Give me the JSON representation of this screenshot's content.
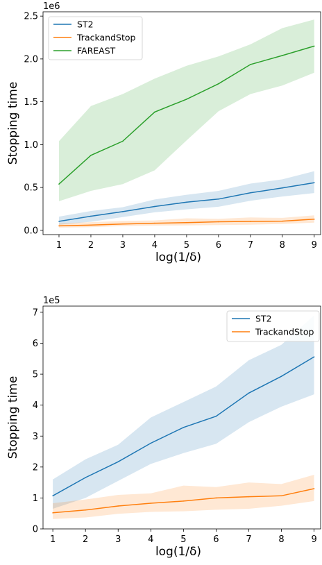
{
  "chart_data": [
    {
      "type": "line",
      "title": "",
      "xlabel": "log(1/δ)",
      "ylabel": "Stopping time",
      "y_offset_label": "1e6",
      "x": [
        1,
        2,
        3,
        4,
        5,
        6,
        7,
        8,
        9
      ],
      "xlim": [
        0.5,
        9.2
      ],
      "ylim": [
        -0.05,
        2.55
      ],
      "xticks": [
        "1",
        "2",
        "3",
        "4",
        "5",
        "6",
        "7",
        "8",
        "9"
      ],
      "yticks": [
        0.0,
        0.5,
        1.0,
        1.5,
        2.0,
        2.5
      ],
      "ytick_labels": [
        "0.0",
        "0.5",
        "1.0",
        "1.5",
        "2.0",
        "2.5"
      ],
      "grid": false,
      "legend": "top-left",
      "series": [
        {
          "name": "ST2",
          "color": "#1f77b4",
          "values": [
            0.105,
            0.165,
            0.218,
            0.278,
            0.328,
            0.365,
            0.438,
            0.494,
            0.556
          ],
          "lower": [
            0.065,
            0.1,
            0.155,
            0.21,
            0.245,
            0.275,
            0.345,
            0.395,
            0.435
          ],
          "upper": [
            0.16,
            0.225,
            0.27,
            0.36,
            0.415,
            0.46,
            0.545,
            0.595,
            0.69
          ]
        },
        {
          "name": "TrackandStop",
          "color": "#ff7f0e",
          "values": [
            0.052,
            0.061,
            0.074,
            0.083,
            0.09,
            0.1,
            0.104,
            0.107,
            0.13
          ],
          "lower": [
            0.032,
            0.037,
            0.049,
            0.055,
            0.057,
            0.062,
            0.065,
            0.075,
            0.09
          ],
          "upper": [
            0.083,
            0.095,
            0.11,
            0.115,
            0.14,
            0.135,
            0.15,
            0.145,
            0.175
          ]
        },
        {
          "name": "FAREAST",
          "color": "#2ca02c",
          "values": [
            0.54,
            0.875,
            1.04,
            1.38,
            1.53,
            1.71,
            1.935,
            2.04,
            2.15
          ],
          "lower": [
            0.34,
            0.46,
            0.54,
            0.7,
            1.05,
            1.39,
            1.59,
            1.69,
            1.84
          ],
          "upper": [
            1.04,
            1.45,
            1.59,
            1.77,
            1.92,
            2.03,
            2.17,
            2.36,
            2.46
          ]
        }
      ]
    },
    {
      "type": "line",
      "title": "",
      "xlabel": "log(1/δ)",
      "ylabel": "Stopping time",
      "y_offset_label": "1e5",
      "x": [
        1,
        2,
        3,
        4,
        5,
        6,
        7,
        8,
        9
      ],
      "xlim": [
        0.7,
        9.2
      ],
      "ylim": [
        0,
        7.2
      ],
      "xticks": [
        "1",
        "2",
        "3",
        "4",
        "5",
        "6",
        "7",
        "8",
        "9"
      ],
      "yticks": [
        0,
        1,
        2,
        3,
        4,
        5,
        6,
        7
      ],
      "ytick_labels": [
        "0",
        "1",
        "2",
        "3",
        "4",
        "5",
        "6",
        "7"
      ],
      "grid": false,
      "legend": "top-right",
      "series": [
        {
          "name": "ST2",
          "color": "#1f77b4",
          "values": [
            1.07,
            1.66,
            2.17,
            2.77,
            3.28,
            3.64,
            4.39,
            4.93,
            5.56
          ],
          "lower": [
            0.65,
            1.0,
            1.55,
            2.1,
            2.45,
            2.75,
            3.45,
            3.95,
            4.35
          ],
          "upper": [
            1.6,
            2.25,
            2.72,
            3.6,
            4.1,
            4.6,
            5.45,
            5.95,
            6.9
          ]
        },
        {
          "name": "TrackandStop",
          "color": "#ff7f0e",
          "values": [
            0.52,
            0.61,
            0.74,
            0.83,
            0.9,
            1.0,
            1.04,
            1.07,
            1.3
          ],
          "lower": [
            0.32,
            0.37,
            0.49,
            0.55,
            0.57,
            0.62,
            0.65,
            0.75,
            0.9
          ],
          "upper": [
            0.83,
            0.95,
            1.1,
            1.15,
            1.4,
            1.35,
            1.5,
            1.45,
            1.75
          ]
        }
      ]
    }
  ]
}
